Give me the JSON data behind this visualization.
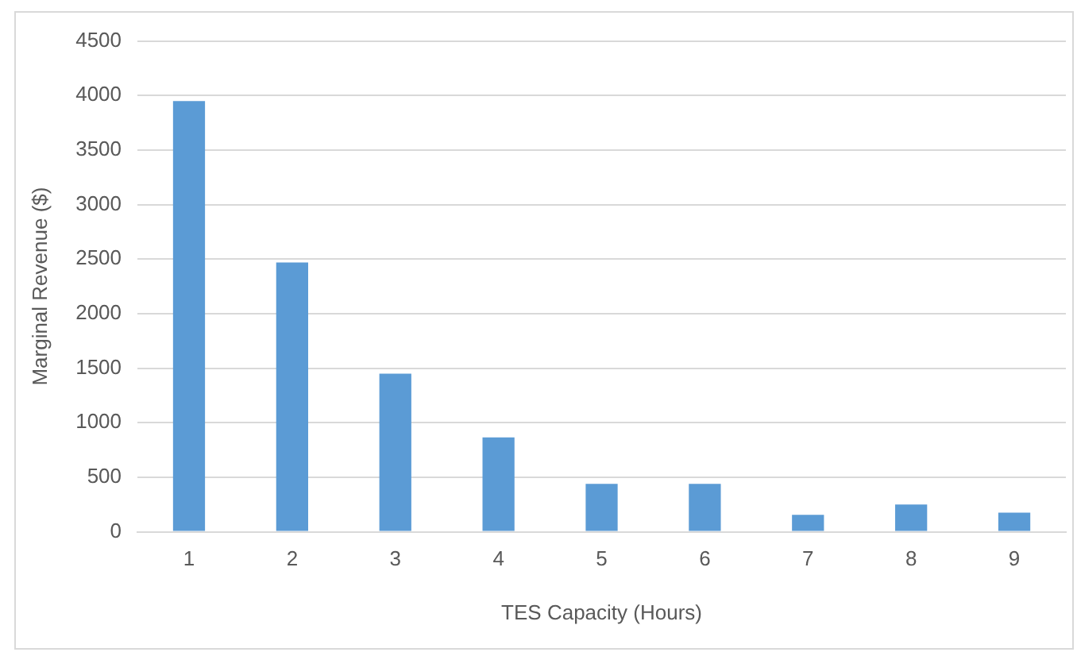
{
  "chart_data": {
    "type": "bar",
    "xlabel": "TES Capacity (Hours)",
    "ylabel": "Marginal Revenue ($)",
    "categories": [
      "1",
      "2",
      "3",
      "4",
      "5",
      "6",
      "7",
      "8",
      "9"
    ],
    "values": [
      3950,
      2470,
      1450,
      865,
      440,
      440,
      155,
      250,
      175
    ],
    "color": "#5b9bd5",
    "ylim": [
      0,
      4500
    ],
    "yticks": [
      0,
      500,
      1000,
      1500,
      2000,
      2500,
      3000,
      3500,
      4000,
      4500
    ],
    "grid": "y"
  }
}
